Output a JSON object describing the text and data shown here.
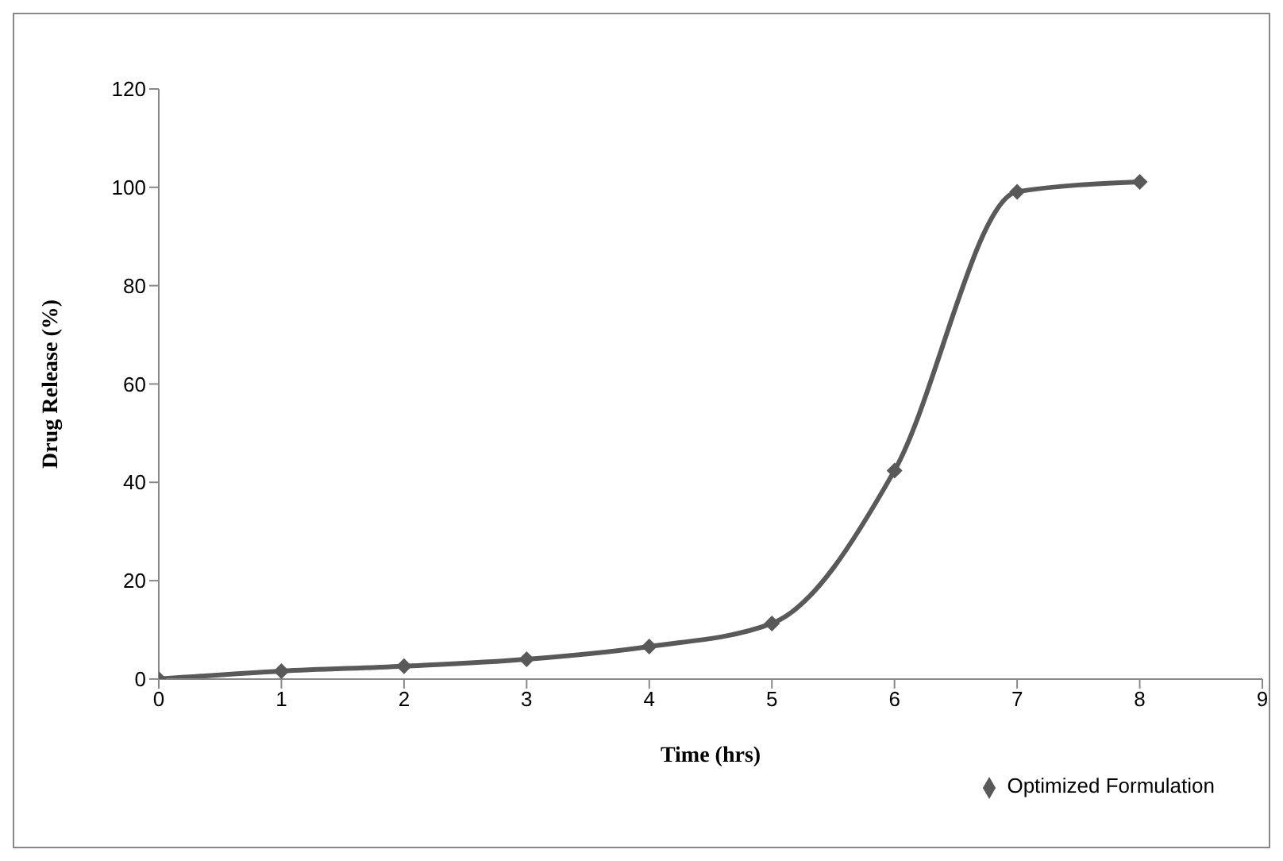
{
  "chart_data": {
    "type": "line",
    "xlabel": "Time (hrs)",
    "ylabel": "Drug Release (%)",
    "x": [
      0,
      1,
      2,
      3,
      4,
      5,
      6,
      7,
      8
    ],
    "series": [
      {
        "name": "Optimized Formulation",
        "color": "#595959",
        "values": [
          0,
          1.6,
          2.6,
          4,
          6.6,
          11.3,
          42.4,
          99.1,
          101.1
        ]
      }
    ],
    "xlim": [
      0,
      9
    ],
    "xticks": [
      0,
      1,
      2,
      3,
      4,
      5,
      6,
      7,
      8,
      9
    ],
    "ylim": [
      0,
      120
    ],
    "yticks": [
      0,
      20,
      40,
      60,
      80,
      100,
      120
    ],
    "legend": "bottom right",
    "marker": "diamond",
    "line_style": "solid"
  }
}
